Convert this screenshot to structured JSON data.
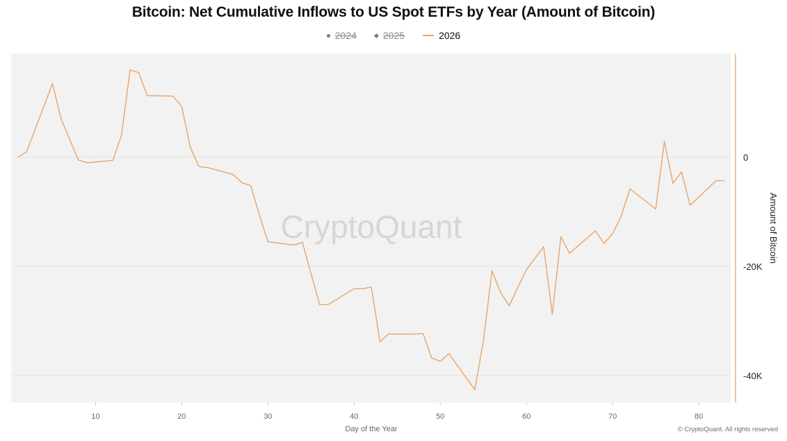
{
  "chart_data": {
    "type": "line",
    "title": "Bitcoin: Net Cumulative Inflows to US Spot ETFs by Year (Amount of Bitcoin)",
    "xlabel": "Day of the Year",
    "ylabel": "Amount of Bitcoin",
    "xlim": [
      0.2,
      83.7
    ],
    "ylim": [
      -45000,
      19000
    ],
    "x_ticks": [
      10,
      20,
      30,
      40,
      50,
      60,
      70,
      80
    ],
    "x_tick_labels": [
      "10",
      "20",
      "30",
      "40",
      "50",
      "60",
      "70",
      "80"
    ],
    "y_ticks": [
      0,
      -20000,
      -40000
    ],
    "y_tick_labels": [
      "0",
      "-20K",
      "-40K"
    ],
    "grid": "horizontal",
    "legend_position": "top-center",
    "legend": [
      {
        "name": "2024",
        "marker": "dot",
        "hidden": true
      },
      {
        "name": "2025",
        "marker": "diamond",
        "hidden": true
      },
      {
        "name": "2026",
        "marker": "line",
        "hidden": false
      }
    ],
    "series": [
      {
        "name": "2026",
        "color": "#e8a46a",
        "x": [
          1,
          2,
          5,
          6,
          8,
          9,
          12,
          13,
          14,
          15,
          16,
          19,
          20,
          21,
          22,
          23,
          26,
          27,
          28,
          29,
          30,
          33,
          34,
          36,
          37,
          40,
          41,
          42,
          43,
          44,
          47,
          48,
          49,
          50,
          51,
          54,
          55,
          56,
          57,
          58,
          60,
          62,
          63,
          64,
          65,
          68,
          69,
          70,
          71,
          72,
          75,
          76,
          77,
          78,
          79,
          82,
          83
        ],
        "y": [
          0,
          1000,
          13500,
          7000,
          -500,
          -1000,
          -600,
          4000,
          16000,
          15500,
          11300,
          11200,
          9300,
          1800,
          -1700,
          -1900,
          -3200,
          -4700,
          -5200,
          -10500,
          -15500,
          -16100,
          -15600,
          -27000,
          -27000,
          -24100,
          -24100,
          -23800,
          -33800,
          -32400,
          -32400,
          -32300,
          -36800,
          -37400,
          -36000,
          -42600,
          -33700,
          -20800,
          -24800,
          -27200,
          -20600,
          -16400,
          -28800,
          -14600,
          -17600,
          -13500,
          -15800,
          -14000,
          -10800,
          -5800,
          -9500,
          2900,
          -4800,
          -2700,
          -8800,
          -4300,
          -4300
        ]
      }
    ],
    "watermark": "CryptoQuant",
    "colors": {
      "plot_background": "#f2f2f2",
      "series_2026": "#e8a46a",
      "right_axis": "#e3b07f"
    }
  },
  "copyright": "© CryptoQuant. All rights reserved"
}
